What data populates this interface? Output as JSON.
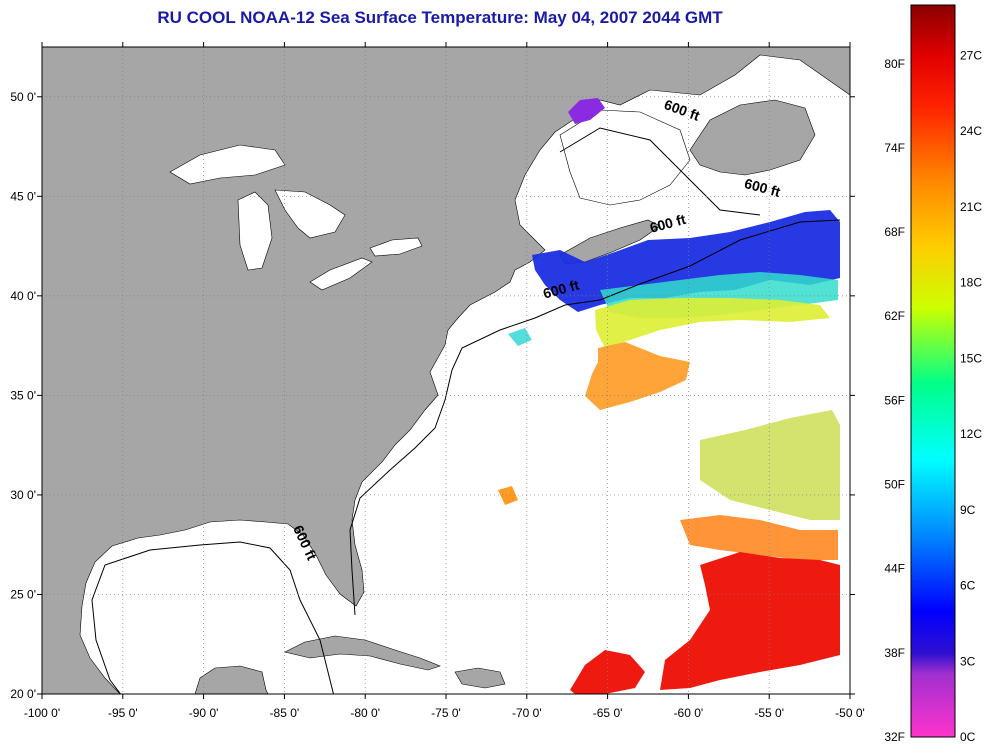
{
  "title": "RU COOL  NOAA-12  Sea Surface Temperature:  May 04, 2007 2044 GMT",
  "map": {
    "lon_range": [
      -100,
      -50
    ],
    "lat_range": [
      20,
      52.5
    ],
    "lon_ticks": [
      {
        "value": -100,
        "label": "-100 0'"
      },
      {
        "value": -95,
        "label": "-95 0'"
      },
      {
        "value": -90,
        "label": "-90 0'"
      },
      {
        "value": -85,
        "label": "-85 0'"
      },
      {
        "value": -80,
        "label": "-80 0'"
      },
      {
        "value": -75,
        "label": "-75 0'"
      },
      {
        "value": -70,
        "label": "-70 0'"
      },
      {
        "value": -65,
        "label": "-65 0'"
      },
      {
        "value": -60,
        "label": "-60 0'"
      },
      {
        "value": -55,
        "label": "-55 0'"
      },
      {
        "value": -50,
        "label": "-50 0'"
      }
    ],
    "lat_ticks": [
      {
        "value": 20,
        "label": "20 0'"
      },
      {
        "value": 25,
        "label": "25 0'"
      },
      {
        "value": 30,
        "label": "30 0'"
      },
      {
        "value": 35,
        "label": "35 0'"
      },
      {
        "value": 40,
        "label": "40 0'"
      },
      {
        "value": 45,
        "label": "45 0'"
      },
      {
        "value": 50,
        "label": "50 0'"
      }
    ],
    "contour_labels": [
      {
        "text": "600 ft",
        "lon": -60.5,
        "lat": 49.1,
        "angle": 20
      },
      {
        "text": "600 ft",
        "lon": -55.5,
        "lat": 45.2,
        "angle": 15
      },
      {
        "text": "600 ft",
        "lon": -61.2,
        "lat": 43.4,
        "angle": -15
      },
      {
        "text": "600 ft",
        "lon": -67.8,
        "lat": 40.1,
        "angle": -15
      },
      {
        "text": "600 ft",
        "lon": -84.0,
        "lat": 27.5,
        "angle": 65
      }
    ],
    "colors": {
      "land": "#a6a6a6",
      "ocean": "#ffffff",
      "grid": "#808080"
    }
  },
  "colorbar": {
    "min_c": 0,
    "max_c": 29,
    "f_labels": [
      {
        "label": "32F",
        "c": 0
      },
      {
        "label": "38F",
        "c": 3.33
      },
      {
        "label": "44F",
        "c": 6.67
      },
      {
        "label": "50F",
        "c": 10
      },
      {
        "label": "56F",
        "c": 13.33
      },
      {
        "label": "62F",
        "c": 16.67
      },
      {
        "label": "68F",
        "c": 20
      },
      {
        "label": "74F",
        "c": 23.33
      },
      {
        "label": "80F",
        "c": 26.67
      }
    ],
    "c_labels": [
      {
        "label": "0C",
        "c": 0
      },
      {
        "label": "3C",
        "c": 3
      },
      {
        "label": "6C",
        "c": 6
      },
      {
        "label": "9C",
        "c": 9
      },
      {
        "label": "12C",
        "c": 12
      },
      {
        "label": "15C",
        "c": 15
      },
      {
        "label": "18C",
        "c": 18
      },
      {
        "label": "21C",
        "c": 21
      },
      {
        "label": "24C",
        "c": 24
      },
      {
        "label": "27C",
        "c": 27
      }
    ],
    "gradient": [
      {
        "c": 0,
        "color": "#ff33cc"
      },
      {
        "c": 2.5,
        "color": "#a030d0"
      },
      {
        "c": 3.3,
        "color": "#3010d0"
      },
      {
        "c": 5,
        "color": "#0000ff"
      },
      {
        "c": 8,
        "color": "#0088ff"
      },
      {
        "c": 11,
        "color": "#00ffff"
      },
      {
        "c": 14,
        "color": "#00ff88"
      },
      {
        "c": 17,
        "color": "#ccff00"
      },
      {
        "c": 19.5,
        "color": "#ffcc00"
      },
      {
        "c": 22,
        "color": "#ff8800"
      },
      {
        "c": 25,
        "color": "#ff2200"
      },
      {
        "c": 27,
        "color": "#e00000"
      },
      {
        "c": 29,
        "color": "#8a0000"
      }
    ]
  }
}
